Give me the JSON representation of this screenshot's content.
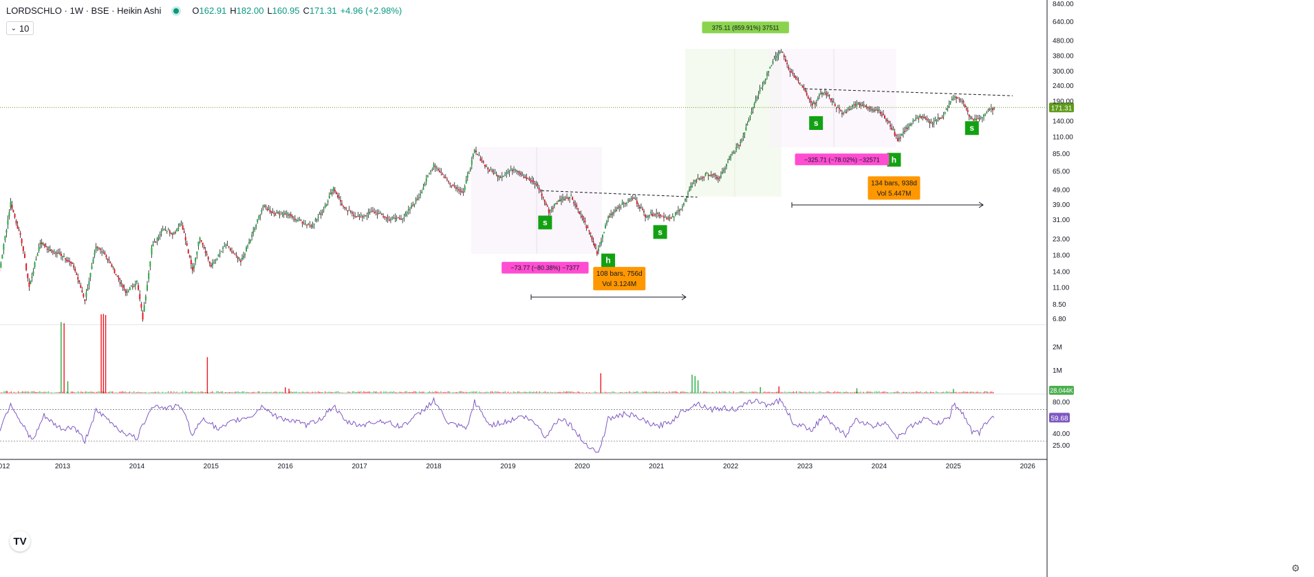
{
  "header": {
    "symbol_line": "LORDSCHLO · 1W · BSE · Heikin Ashi",
    "open_label": "O",
    "open": "162.91",
    "high_label": "H",
    "high": "182.00",
    "low_label": "L",
    "low": "160.95",
    "close_label": "C",
    "close": "171.31",
    "change": "+4.96 (+2.98%)",
    "status_icon": "market-open-dot"
  },
  "interval_selector": {
    "value": "10",
    "icon": "chevron-down-icon"
  },
  "logo_text": "TV",
  "settings_icon": "gear-icon",
  "colors": {
    "up": "#22ab3c",
    "down": "#f0141e",
    "wick": "#131722",
    "rsi": "#7e57c2",
    "price_tag": "#5f9b1b",
    "vol_tag": "#4caf50",
    "pink": "#ff4dd2",
    "orange": "#ff9800",
    "lime": "#8bd34d",
    "pattern_green": "#13a113"
  },
  "chart_data": [
    {
      "type": "candlestick",
      "title": "LORDSCHLO · 1W · BSE · Heikin Ashi",
      "scale": "log",
      "y_ticks": [
        "840.00",
        "640.00",
        "480.00",
        "380.00",
        "300.00",
        "240.00",
        "190.00",
        "140.00",
        "110.00",
        "85.00",
        "65.00",
        "49.00",
        "39.00",
        "31.00",
        "23.00",
        "18.00",
        "14.00",
        "11.00",
        "8.50",
        "6.80"
      ],
      "x_ticks": [
        "012",
        "2013",
        "2014",
        "2015",
        "2016",
        "2017",
        "2018",
        "2019",
        "2020",
        "2021",
        "2022",
        "2023",
        "2024",
        "2025",
        "2026"
      ],
      "last_price": "171.31",
      "path": [
        [
          2012.0,
          16
        ],
        [
          2012.15,
          14
        ],
        [
          2012.3,
          40
        ],
        [
          2012.45,
          22
        ],
        [
          2012.55,
          11
        ],
        [
          2012.7,
          22
        ],
        [
          2012.85,
          19
        ],
        [
          2013.0,
          18
        ],
        [
          2013.15,
          15
        ],
        [
          2013.3,
          9
        ],
        [
          2013.45,
          20
        ],
        [
          2013.55,
          19
        ],
        [
          2013.7,
          14
        ],
        [
          2013.85,
          10
        ],
        [
          2014.0,
          12
        ],
        [
          2014.08,
          6.8
        ],
        [
          2014.2,
          20
        ],
        [
          2014.35,
          27
        ],
        [
          2014.5,
          25
        ],
        [
          2014.6,
          30
        ],
        [
          2014.75,
          14
        ],
        [
          2014.85,
          24
        ],
        [
          2015.0,
          15
        ],
        [
          2015.2,
          21
        ],
        [
          2015.4,
          16
        ],
        [
          2015.55,
          24
        ],
        [
          2015.7,
          38
        ],
        [
          2015.85,
          34
        ],
        [
          2016.0,
          34
        ],
        [
          2016.15,
          31
        ],
        [
          2016.35,
          28
        ],
        [
          2016.5,
          35
        ],
        [
          2016.65,
          50
        ],
        [
          2016.8,
          36
        ],
        [
          2017.0,
          32
        ],
        [
          2017.2,
          35
        ],
        [
          2017.4,
          31
        ],
        [
          2017.6,
          32
        ],
        [
          2017.8,
          44
        ],
        [
          2018.0,
          72
        ],
        [
          2018.2,
          55
        ],
        [
          2018.4,
          47
        ],
        [
          2018.55,
          88
        ],
        [
          2018.75,
          65
        ],
        [
          2018.9,
          60
        ],
        [
          2019.1,
          68
        ],
        [
          2019.25,
          58
        ],
        [
          2019.4,
          52
        ],
        [
          2019.55,
          35
        ],
        [
          2019.7,
          42
        ],
        [
          2019.85,
          44
        ],
        [
          2020.0,
          32
        ],
        [
          2020.15,
          22
        ],
        [
          2020.2,
          18
        ],
        [
          2020.35,
          32
        ],
        [
          2020.5,
          38
        ],
        [
          2020.7,
          43
        ],
        [
          2020.85,
          33
        ],
        [
          2021.0,
          34
        ],
        [
          2021.2,
          31
        ],
        [
          2021.35,
          38
        ],
        [
          2021.5,
          55
        ],
        [
          2021.7,
          62
        ],
        [
          2021.85,
          58
        ],
        [
          2022.0,
          80
        ],
        [
          2022.15,
          105
        ],
        [
          2022.3,
          175
        ],
        [
          2022.45,
          260
        ],
        [
          2022.55,
          335
        ],
        [
          2022.68,
          410
        ],
        [
          2022.8,
          300
        ],
        [
          2022.95,
          240
        ],
        [
          2023.1,
          175
        ],
        [
          2023.25,
          220
        ],
        [
          2023.35,
          195
        ],
        [
          2023.5,
          155
        ],
        [
          2023.7,
          185
        ],
        [
          2023.85,
          170
        ],
        [
          2024.0,
          165
        ],
        [
          2024.15,
          130
        ],
        [
          2024.25,
          105
        ],
        [
          2024.4,
          130
        ],
        [
          2024.55,
          150
        ],
        [
          2024.7,
          135
        ],
        [
          2024.85,
          150
        ],
        [
          2025.0,
          200
        ],
        [
          2025.12,
          190
        ],
        [
          2025.25,
          140
        ],
        [
          2025.35,
          145
        ],
        [
          2025.45,
          160
        ],
        [
          2025.55,
          171.31
        ]
      ]
    },
    {
      "type": "bar",
      "title": "Volume",
      "y_ticks": [
        "2M",
        "1M"
      ],
      "last_value": "28.044K",
      "spikes": [
        {
          "x": 2012.25,
          "value": 110000,
          "dir": "down"
        },
        {
          "x": 2012.98,
          "value": 3050000,
          "dir": "up"
        },
        {
          "x": 2013.02,
          "value": 3000000,
          "dir": "down"
        },
        {
          "x": 2013.07,
          "value": 520000,
          "dir": "up"
        },
        {
          "x": 2013.52,
          "value": 3380000,
          "dir": "down"
        },
        {
          "x": 2013.55,
          "value": 3400000,
          "dir": "down"
        },
        {
          "x": 2013.58,
          "value": 3350000,
          "dir": "down"
        },
        {
          "x": 2014.95,
          "value": 1550000,
          "dir": "down"
        },
        {
          "x": 2020.25,
          "value": 860000,
          "dir": "down"
        },
        {
          "x": 2021.48,
          "value": 800000,
          "dir": "up"
        },
        {
          "x": 2021.52,
          "value": 740000,
          "dir": "up"
        },
        {
          "x": 2021.56,
          "value": 560000,
          "dir": "up"
        },
        {
          "x": 2016.0,
          "value": 260000,
          "dir": "down"
        },
        {
          "x": 2016.05,
          "value": 200000,
          "dir": "down"
        },
        {
          "x": 2022.4,
          "value": 270000,
          "dir": "up"
        },
        {
          "x": 2022.65,
          "value": 300000,
          "dir": "down"
        },
        {
          "x": 2023.7,
          "value": 220000,
          "dir": "up"
        },
        {
          "x": 2025.0,
          "value": 190000,
          "dir": "up"
        }
      ]
    },
    {
      "type": "line",
      "title": "RSI",
      "y_ticks": [
        "80.00",
        "40.00",
        "25.00"
      ],
      "bands": [
        70,
        30
      ],
      "last_value": "59.68",
      "points": [
        [
          2012.0,
          38
        ],
        [
          2012.1,
          32
        ],
        [
          2012.3,
          78
        ],
        [
          2012.45,
          52
        ],
        [
          2012.6,
          30
        ],
        [
          2012.75,
          62
        ],
        [
          2012.9,
          50
        ],
        [
          2013.0,
          45
        ],
        [
          2013.15,
          48
        ],
        [
          2013.3,
          30
        ],
        [
          2013.45,
          68
        ],
        [
          2013.6,
          58
        ],
        [
          2013.8,
          42
        ],
        [
          2014.0,
          33
        ],
        [
          2014.2,
          75
        ],
        [
          2014.4,
          72
        ],
        [
          2014.6,
          74
        ],
        [
          2014.75,
          38
        ],
        [
          2014.9,
          60
        ],
        [
          2015.1,
          44
        ],
        [
          2015.3,
          55
        ],
        [
          2015.55,
          62
        ],
        [
          2015.7,
          75
        ],
        [
          2015.85,
          62
        ],
        [
          2016.0,
          58
        ],
        [
          2016.3,
          50
        ],
        [
          2016.5,
          60
        ],
        [
          2016.65,
          75
        ],
        [
          2016.8,
          55
        ],
        [
          2017.0,
          50
        ],
        [
          2017.3,
          56
        ],
        [
          2017.55,
          48
        ],
        [
          2017.8,
          64
        ],
        [
          2018.0,
          82
        ],
        [
          2018.2,
          52
        ],
        [
          2018.45,
          46
        ],
        [
          2018.55,
          80
        ],
        [
          2018.75,
          50
        ],
        [
          2019.0,
          55
        ],
        [
          2019.2,
          62
        ],
        [
          2019.4,
          50
        ],
        [
          2019.5,
          35
        ],
        [
          2019.7,
          60
        ],
        [
          2019.85,
          50
        ],
        [
          2020.0,
          30
        ],
        [
          2020.15,
          20
        ],
        [
          2020.22,
          14
        ],
        [
          2020.35,
          58
        ],
        [
          2020.6,
          65
        ],
        [
          2020.8,
          57
        ],
        [
          2021.0,
          48
        ],
        [
          2021.2,
          55
        ],
        [
          2021.35,
          68
        ],
        [
          2021.55,
          78
        ],
        [
          2021.75,
          70
        ],
        [
          2021.9,
          72
        ],
        [
          2022.1,
          70
        ],
        [
          2022.3,
          82
        ],
        [
          2022.5,
          76
        ],
        [
          2022.68,
          82
        ],
        [
          2022.85,
          52
        ],
        [
          2023.1,
          45
        ],
        [
          2023.25,
          62
        ],
        [
          2023.4,
          47
        ],
        [
          2023.55,
          38
        ],
        [
          2023.7,
          58
        ],
        [
          2023.9,
          48
        ],
        [
          2024.1,
          54
        ],
        [
          2024.25,
          34
        ],
        [
          2024.45,
          50
        ],
        [
          2024.6,
          58
        ],
        [
          2024.8,
          52
        ],
        [
          2024.95,
          60
        ],
        [
          2025.0,
          78
        ],
        [
          2025.15,
          62
        ],
        [
          2025.25,
          42
        ],
        [
          2025.35,
          40
        ],
        [
          2025.45,
          55
        ],
        [
          2025.55,
          59.68
        ]
      ]
    }
  ],
  "drawings": {
    "pattern_labels": [
      {
        "text": "s",
        "x": 2019.5,
        "price": 29.5
      },
      {
        "text": "h",
        "x": 2020.35,
        "price": 16.5
      },
      {
        "text": "s",
        "x": 2021.05,
        "price": 25.5
      },
      {
        "text": "s",
        "x": 2023.15,
        "price": 135
      },
      {
        "text": "h",
        "x": 2024.2,
        "price": 77
      },
      {
        "text": "s",
        "x": 2025.25,
        "price": 125
      }
    ],
    "measures": [
      {
        "text": "−73.77 (−80.38%) −7377",
        "color": "pink",
        "x": 2019.5,
        "price": 14.7
      },
      {
        "text": "375.11 (859.91%) 37511",
        "color": "lime",
        "x": 2022.2,
        "price": 580
      },
      {
        "text": "−325.71 (−78.02%) −32571",
        "color": "pink",
        "x": 2023.5,
        "price": 77
      }
    ],
    "ranges": [
      {
        "line1": "108 bars, 756d",
        "line2": "Vol 3.124M",
        "x": 2020.5,
        "price": 12.5
      },
      {
        "line1": "134 bars, 938d",
        "line2": "Vol 5.447M",
        "x": 2024.2,
        "price": 50
      }
    ]
  }
}
